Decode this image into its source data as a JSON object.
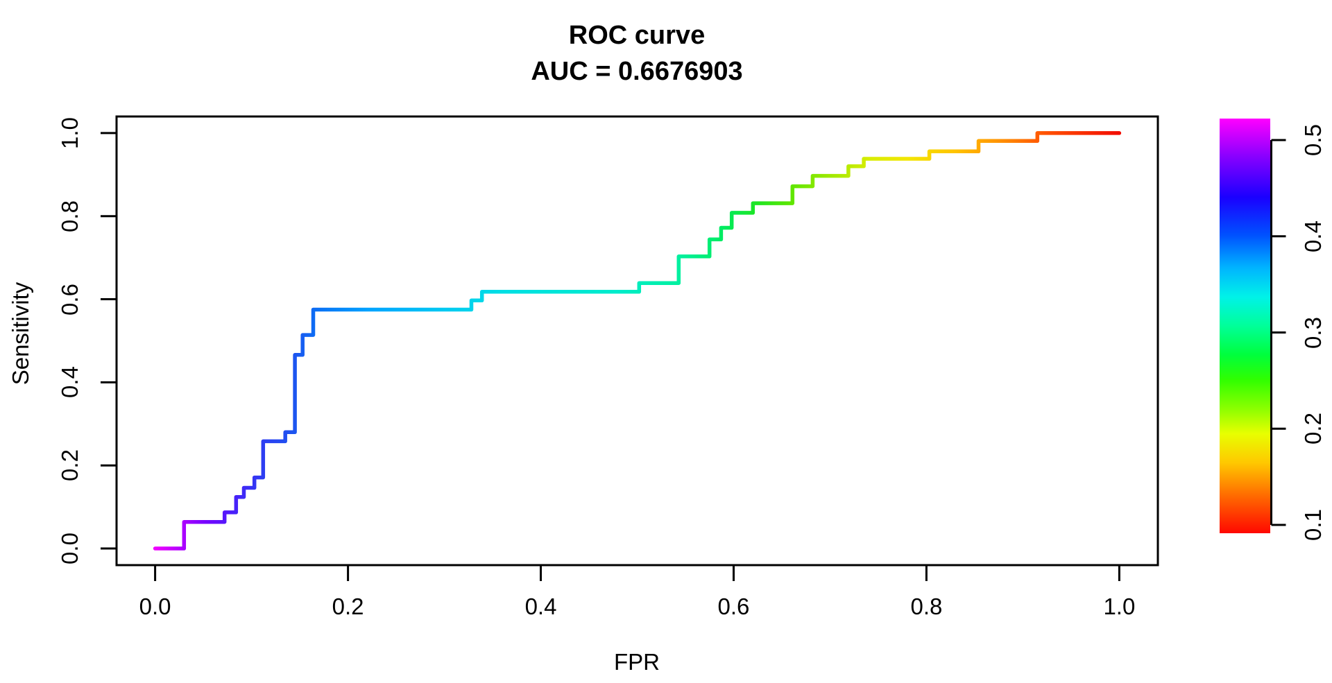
{
  "chart": {
    "title": "ROC curve",
    "subtitle": "AUC = 0.6676903",
    "xlabel": "FPR",
    "ylabel": "Sensitivity"
  },
  "chart_data": {
    "type": "line",
    "subtype": "roc-step-curve",
    "title": "ROC curve",
    "subtitle": "AUC = 0.6676903",
    "auc": 0.6676903,
    "xlabel": "FPR",
    "ylabel": "Sensitivity",
    "xlim": [
      0,
      1
    ],
    "ylim": [
      0,
      1
    ],
    "grid": false,
    "x_tick_labels": [
      "0.0",
      "0.2",
      "0.4",
      "0.6",
      "0.8",
      "1.0"
    ],
    "y_tick_labels": [
      "0.0",
      "0.2",
      "0.4",
      "0.6",
      "0.8",
      "1.0"
    ],
    "x_tick_values": [
      0.0,
      0.2,
      0.4,
      0.6,
      0.8,
      1.0
    ],
    "y_tick_values": [
      0.0,
      0.2,
      0.4,
      0.6,
      0.8,
      1.0
    ],
    "roc_points": [
      [
        0.0,
        0.0
      ],
      [
        0.03,
        0.0
      ],
      [
        0.03,
        0.064
      ],
      [
        0.072,
        0.064
      ],
      [
        0.072,
        0.087
      ],
      [
        0.084,
        0.087
      ],
      [
        0.084,
        0.124
      ],
      [
        0.092,
        0.124
      ],
      [
        0.092,
        0.146
      ],
      [
        0.103,
        0.146
      ],
      [
        0.103,
        0.171
      ],
      [
        0.112,
        0.171
      ],
      [
        0.112,
        0.258
      ],
      [
        0.135,
        0.258
      ],
      [
        0.135,
        0.28
      ],
      [
        0.145,
        0.28
      ],
      [
        0.145,
        0.466
      ],
      [
        0.153,
        0.466
      ],
      [
        0.153,
        0.514
      ],
      [
        0.164,
        0.514
      ],
      [
        0.164,
        0.575
      ],
      [
        0.328,
        0.575
      ],
      [
        0.328,
        0.597
      ],
      [
        0.339,
        0.597
      ],
      [
        0.339,
        0.618
      ],
      [
        0.502,
        0.618
      ],
      [
        0.502,
        0.639
      ],
      [
        0.543,
        0.639
      ],
      [
        0.543,
        0.703
      ],
      [
        0.575,
        0.703
      ],
      [
        0.575,
        0.744
      ],
      [
        0.587,
        0.744
      ],
      [
        0.587,
        0.772
      ],
      [
        0.598,
        0.772
      ],
      [
        0.598,
        0.808
      ],
      [
        0.62,
        0.808
      ],
      [
        0.62,
        0.831
      ],
      [
        0.661,
        0.831
      ],
      [
        0.661,
        0.872
      ],
      [
        0.682,
        0.872
      ],
      [
        0.682,
        0.897
      ],
      [
        0.719,
        0.897
      ],
      [
        0.719,
        0.92
      ],
      [
        0.735,
        0.92
      ],
      [
        0.735,
        0.938
      ],
      [
        0.803,
        0.938
      ],
      [
        0.803,
        0.956
      ],
      [
        0.854,
        0.956
      ],
      [
        0.854,
        0.981
      ],
      [
        0.915,
        0.981
      ],
      [
        0.915,
        1.0
      ],
      [
        1.0,
        1.0
      ]
    ],
    "curve_gradient_stops": [
      [
        0.0,
        "#F000FF"
      ],
      [
        0.02,
        "#C100FF"
      ],
      [
        0.05,
        "#7A00FF"
      ],
      [
        0.08,
        "#4A1EFA"
      ],
      [
        0.11,
        "#2E3CF2"
      ],
      [
        0.145,
        "#1C55F0"
      ],
      [
        0.17,
        "#0A72F5"
      ],
      [
        0.22,
        "#00A2FF"
      ],
      [
        0.3,
        "#00C9F2"
      ],
      [
        0.36,
        "#00DFE4"
      ],
      [
        0.48,
        "#00ECCB"
      ],
      [
        0.545,
        "#00F09E"
      ],
      [
        0.59,
        "#00EC5F"
      ],
      [
        0.625,
        "#1FE521"
      ],
      [
        0.66,
        "#5FE600"
      ],
      [
        0.7,
        "#9FE900"
      ],
      [
        0.74,
        "#D7ED00"
      ],
      [
        0.78,
        "#F2E600"
      ],
      [
        0.83,
        "#FFC300"
      ],
      [
        0.875,
        "#FF9300"
      ],
      [
        0.925,
        "#FF4F00"
      ],
      [
        1.0,
        "#F20C00"
      ]
    ],
    "colorbar": {
      "side": "right",
      "tick_labels": [
        "0.5",
        "0.4",
        "0.3",
        "0.2",
        "0.1"
      ],
      "tick_values": [
        0.5,
        0.4,
        0.3,
        0.2,
        0.1
      ],
      "value_top": 0.522,
      "value_bottom": 0.091,
      "gradient_top_to_bottom": [
        [
          0.0,
          "#FF00FF"
        ],
        [
          0.09,
          "#8A00FF"
        ],
        [
          0.19,
          "#1A00FF"
        ],
        [
          0.28,
          "#0050FF"
        ],
        [
          0.36,
          "#00B4FF"
        ],
        [
          0.43,
          "#00F2E8"
        ],
        [
          0.5,
          "#00FF99"
        ],
        [
          0.57,
          "#00FF3C"
        ],
        [
          0.63,
          "#30FF00"
        ],
        [
          0.7,
          "#8CFF00"
        ],
        [
          0.76,
          "#E8FF00"
        ],
        [
          0.83,
          "#FFC800"
        ],
        [
          0.91,
          "#FF6A00"
        ],
        [
          1.0,
          "#FF0800"
        ]
      ]
    },
    "axis_color": "#000000",
    "background_color": "#ffffff"
  }
}
